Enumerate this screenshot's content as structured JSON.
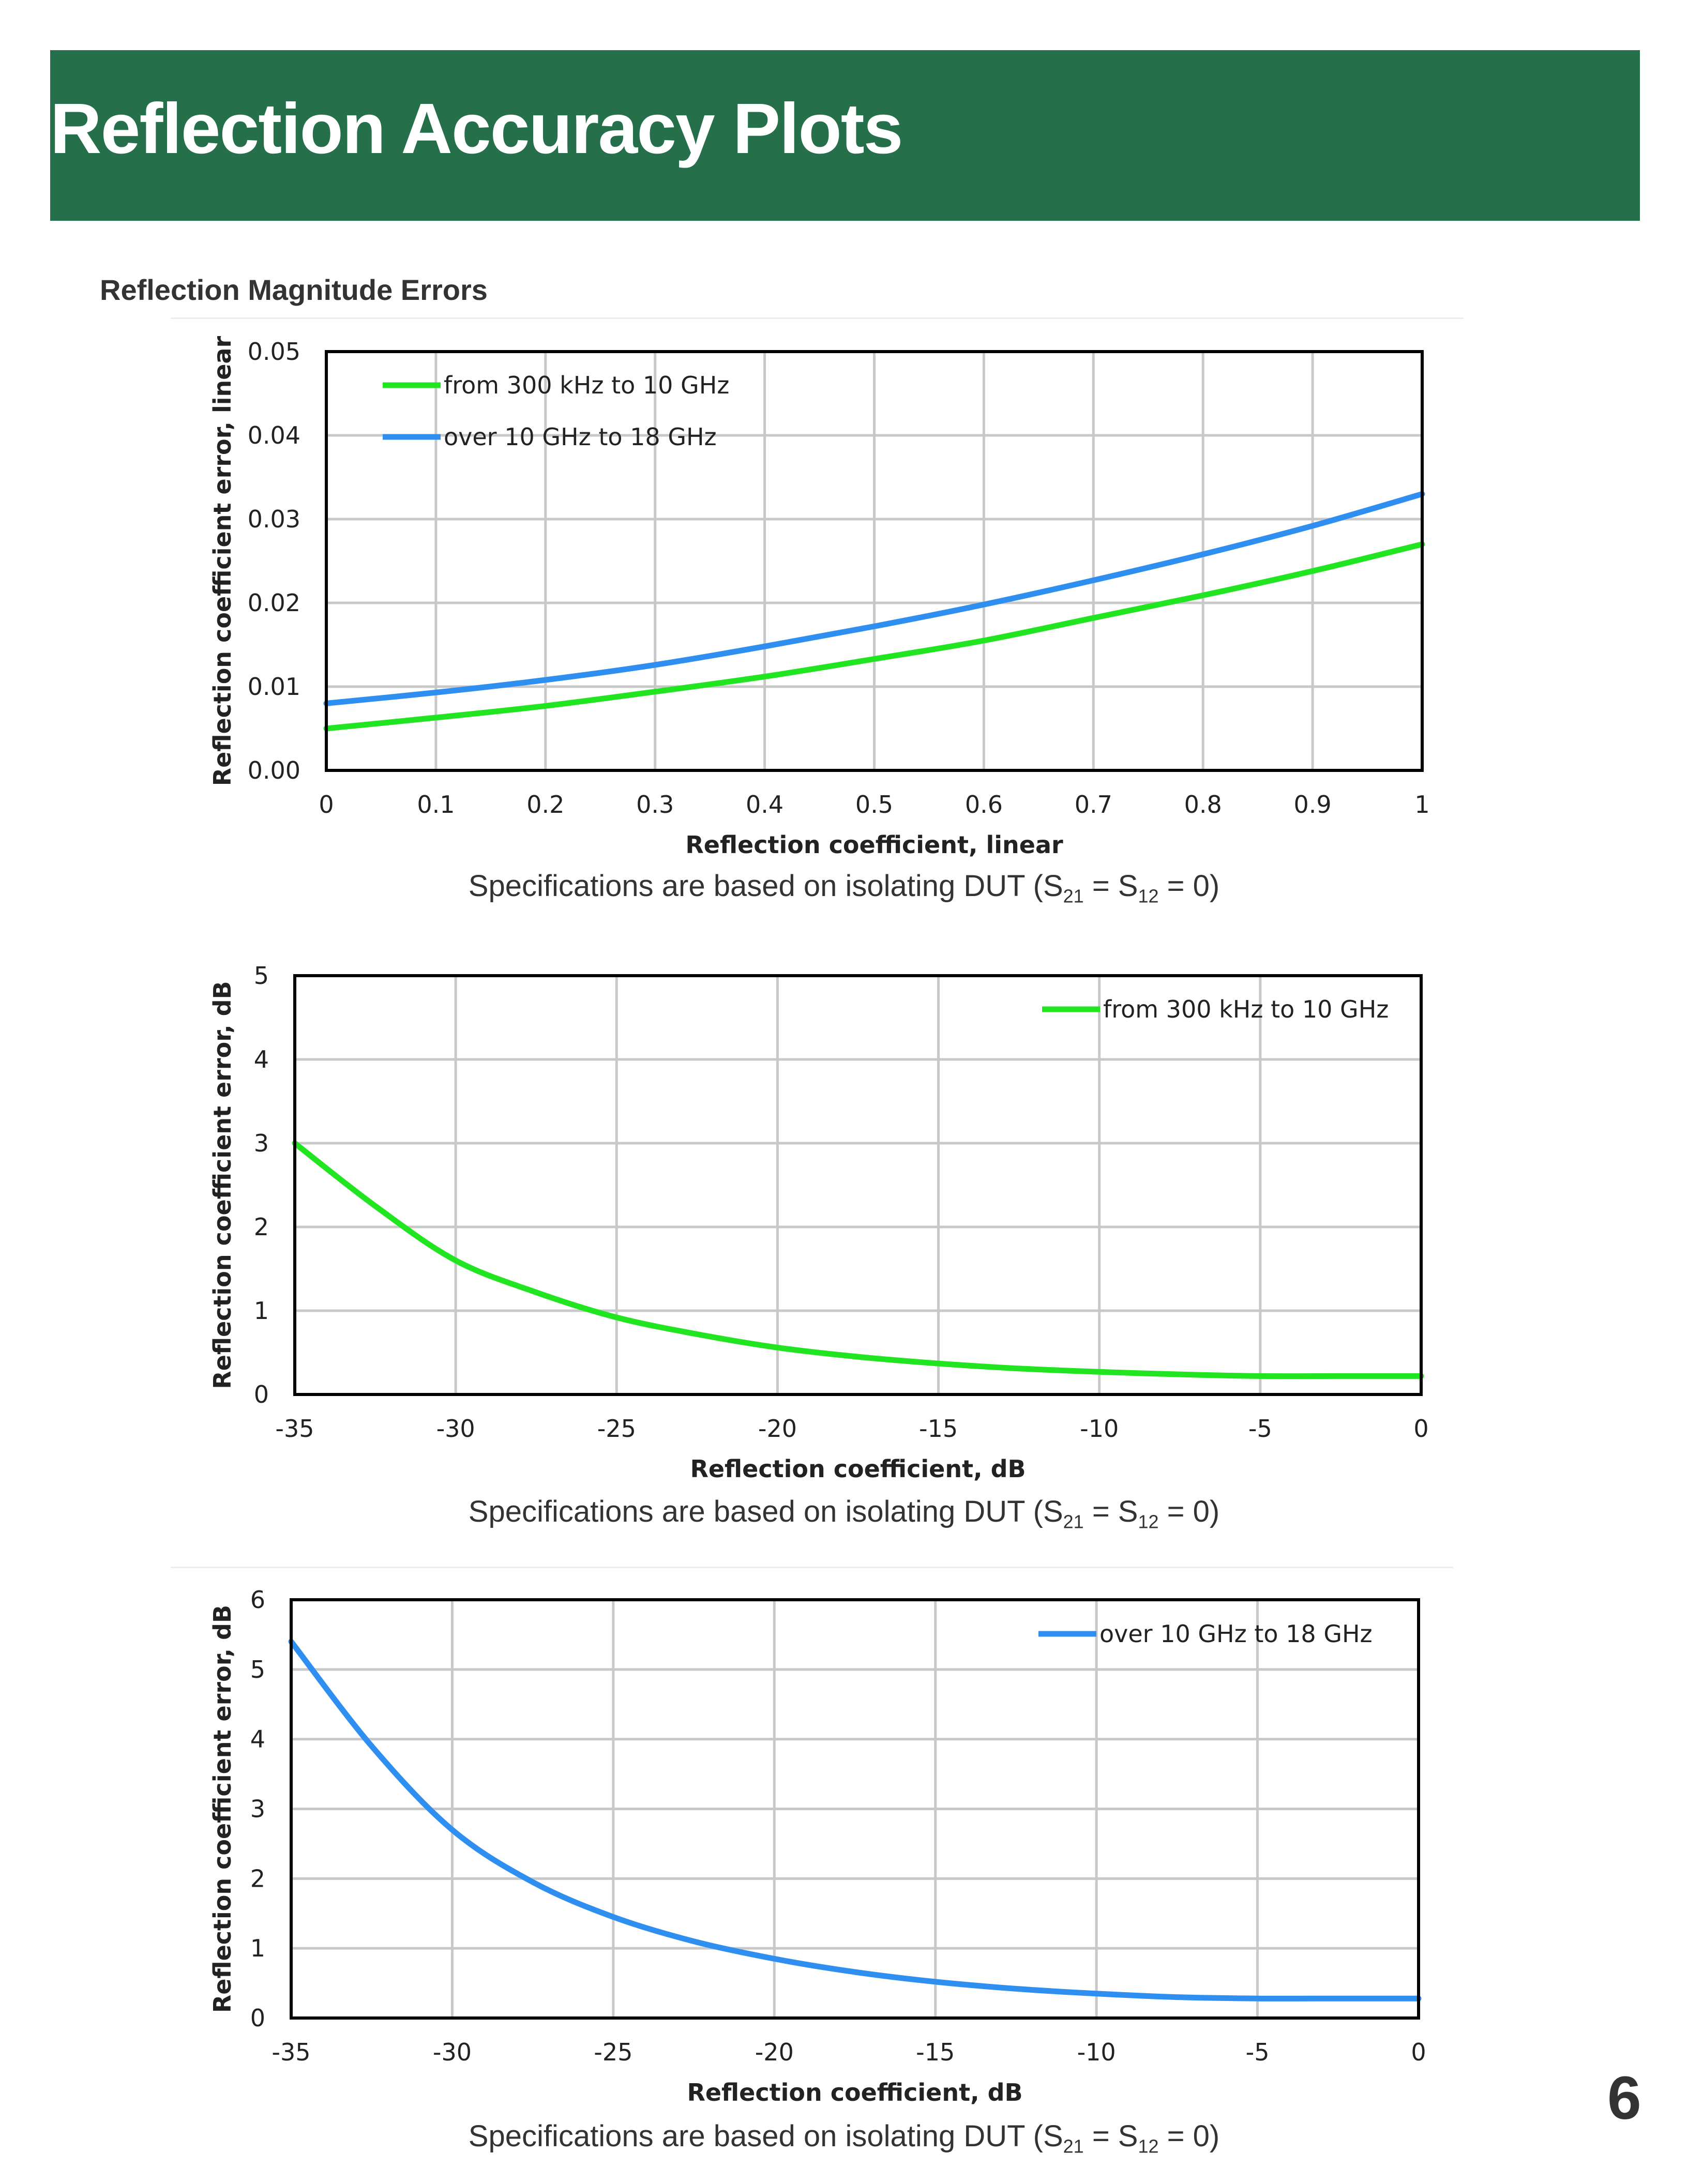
{
  "header": {
    "title": "Reflection Accuracy Plots",
    "bg_color": "#25704b"
  },
  "section": {
    "title": "Reflection Magnitude Errors"
  },
  "captions": {
    "prefix": "Specifications are based on isolating DUT (S",
    "sub1": "21",
    "mid": " = S",
    "sub2": "12",
    "suffix": " = 0)"
  },
  "page_number": "6",
  "colors": {
    "green": "#22e522",
    "blue": "#2f8ff0",
    "grid": "#c8c8c8"
  },
  "chart_data": [
    {
      "type": "line",
      "xlabel": "Reflection coefficient, linear",
      "ylabel": "Reflection coefficient error, linear",
      "xlim": [
        0,
        1
      ],
      "ylim": [
        0,
        0.05
      ],
      "xticks": [
        0,
        0.1,
        0.2,
        0.3,
        0.4,
        0.5,
        0.6,
        0.7,
        0.8,
        0.9,
        1
      ],
      "yticks": [
        0,
        0.01,
        0.02,
        0.03,
        0.04,
        0.05
      ],
      "grid": true,
      "legend_position": "top-left",
      "series": [
        {
          "name": "from 300 kHz to 10 GHz",
          "color": "#22e522",
          "x": [
            0,
            0.1,
            0.2,
            0.3,
            0.4,
            0.5,
            0.6,
            0.7,
            0.8,
            0.9,
            1
          ],
          "y": [
            0.005,
            0.0063,
            0.0077,
            0.0094,
            0.0112,
            0.0133,
            0.0155,
            0.0182,
            0.0209,
            0.0238,
            0.027
          ]
        },
        {
          "name": "over 10 GHz to 18 GHz",
          "color": "#2f8ff0",
          "x": [
            0,
            0.1,
            0.2,
            0.3,
            0.4,
            0.5,
            0.6,
            0.7,
            0.8,
            0.9,
            1
          ],
          "y": [
            0.008,
            0.0093,
            0.0108,
            0.0126,
            0.0148,
            0.0172,
            0.0198,
            0.0227,
            0.0258,
            0.0292,
            0.033
          ]
        }
      ]
    },
    {
      "type": "line",
      "xlabel": "Reflection coefficient, dB",
      "ylabel": "Reflection coefficient error, dB",
      "xlim": [
        -35,
        0
      ],
      "ylim": [
        0,
        5
      ],
      "xticks": [
        -35,
        -30,
        -25,
        -20,
        -15,
        -10,
        -5,
        0
      ],
      "yticks": [
        0,
        1,
        2,
        3,
        4,
        5
      ],
      "grid": true,
      "legend_position": "top-right",
      "series": [
        {
          "name": "from 300 kHz to 10 GHz",
          "color": "#22e522",
          "x": [
            -35,
            -32.5,
            -30,
            -27.5,
            -25,
            -22.5,
            -20,
            -17.5,
            -15,
            -12.5,
            -10,
            -7.5,
            -5,
            -2.5,
            0
          ],
          "y": [
            3.0,
            2.25,
            1.6,
            1.22,
            0.92,
            0.72,
            0.56,
            0.45,
            0.37,
            0.31,
            0.27,
            0.24,
            0.22,
            0.22,
            0.22
          ]
        }
      ]
    },
    {
      "type": "line",
      "xlabel": "Reflection coefficient, dB",
      "ylabel": "Reflection coefficient error, dB",
      "xlim": [
        -35,
        0
      ],
      "ylim": [
        0,
        6
      ],
      "xticks": [
        -35,
        -30,
        -25,
        -20,
        -15,
        -10,
        -5,
        0
      ],
      "yticks": [
        0,
        1,
        2,
        3,
        4,
        5,
        6
      ],
      "grid": true,
      "legend_position": "top-right",
      "series": [
        {
          "name": "over 10 GHz to 18 GHz",
          "color": "#2f8ff0",
          "x": [
            -35,
            -32.5,
            -30,
            -27.5,
            -25,
            -22.5,
            -20,
            -17.5,
            -15,
            -12.5,
            -10,
            -7.5,
            -5,
            -2.5,
            0
          ],
          "y": [
            5.4,
            3.9,
            2.7,
            1.95,
            1.45,
            1.1,
            0.85,
            0.66,
            0.52,
            0.42,
            0.35,
            0.3,
            0.28,
            0.28,
            0.28
          ]
        }
      ]
    }
  ]
}
